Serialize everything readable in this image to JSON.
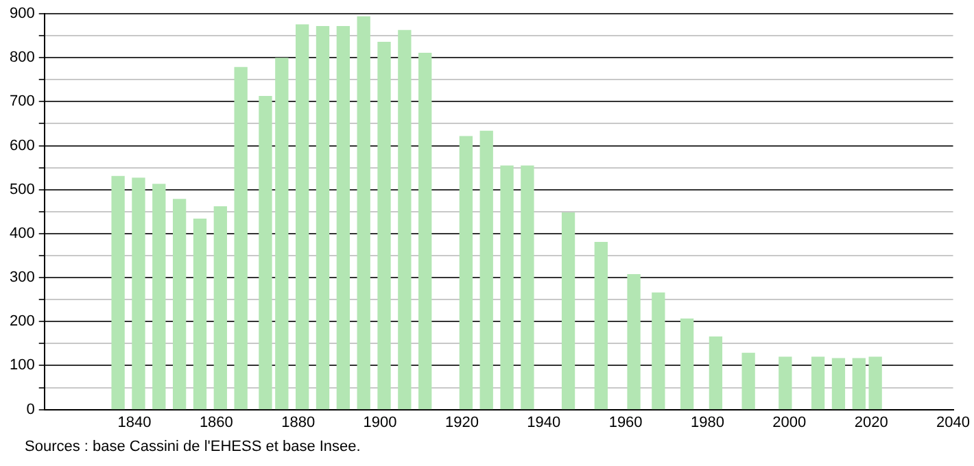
{
  "chart_data": {
    "type": "bar",
    "x": [
      1836,
      1841,
      1846,
      1851,
      1856,
      1861,
      1866,
      1872,
      1876,
      1881,
      1886,
      1891,
      1896,
      1901,
      1906,
      1911,
      1921,
      1926,
      1931,
      1936,
      1946,
      1954,
      1962,
      1968,
      1975,
      1982,
      1990,
      1999,
      2007,
      2012,
      2017,
      2021
    ],
    "values": [
      530,
      526,
      512,
      478,
      433,
      461,
      778,
      712,
      799,
      875,
      871,
      871,
      893,
      835,
      862,
      810,
      621,
      633,
      554,
      554,
      447,
      380,
      307,
      265,
      206,
      165,
      128,
      119,
      119,
      116,
      116,
      119
    ],
    "color": "#b3e6b3",
    "xlim": [
      1818,
      2040
    ],
    "xticks": [
      1840,
      1860,
      1880,
      1900,
      1920,
      1940,
      1960,
      1980,
      2000,
      2020,
      2040
    ],
    "ylim": [
      0,
      900
    ],
    "yticks": [
      0,
      {
        "value": 50,
        "label": null
      },
      100,
      {
        "value": 150,
        "label": null
      },
      200,
      {
        "value": 250,
        "label": null
      },
      300,
      {
        "value": 350,
        "label": null
      },
      400,
      {
        "value": 450,
        "label": null
      },
      500,
      {
        "value": 550,
        "label": null
      },
      600,
      {
        "value": 650,
        "label": null
      },
      700,
      {
        "value": 750,
        "label": null
      },
      800,
      {
        "value": 850,
        "label": null
      },
      900
    ],
    "grid": "y",
    "annotations": [
      "Sources : base Cassini de l'EHESS et base Insee."
    ]
  }
}
